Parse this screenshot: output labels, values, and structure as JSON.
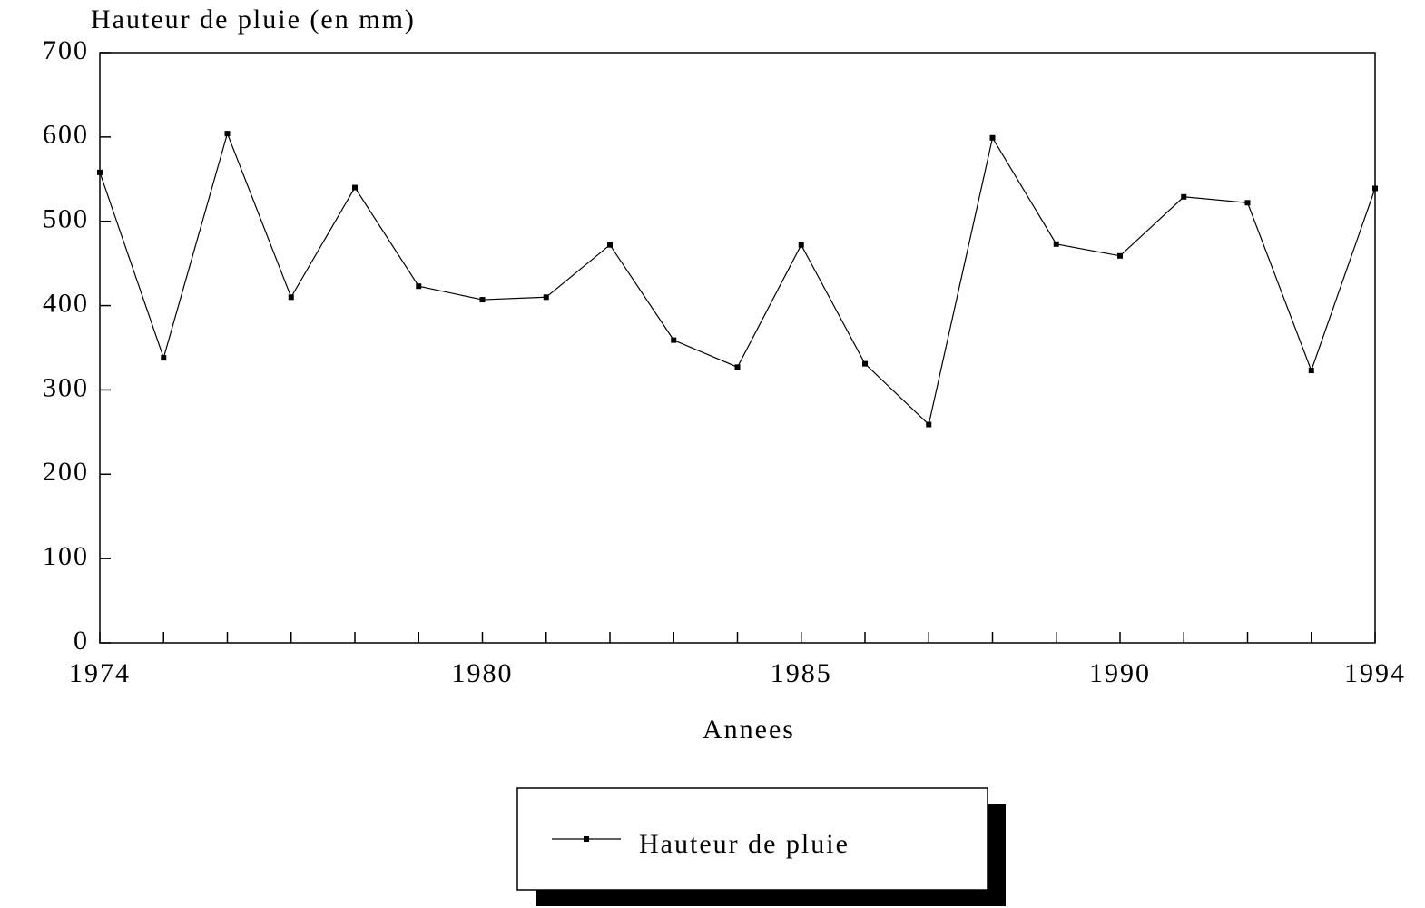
{
  "chart_data": {
    "type": "line",
    "title": "Hauteur de pluie (en mm)",
    "x_label": "Annees",
    "x": [
      1974,
      1975,
      1976,
      1977,
      1978,
      1979,
      1980,
      1981,
      1982,
      1983,
      1984,
      1985,
      1986,
      1987,
      1988,
      1989,
      1990,
      1991,
      1992,
      1993,
      1994
    ],
    "series": [
      {
        "name": "Hauteur de pluie",
        "color": "#000000",
        "values": [
          558,
          338,
          604,
          410,
          540,
          423,
          407,
          410,
          472,
          359,
          327,
          472,
          331,
          259,
          599,
          473,
          459,
          529,
          522,
          323,
          539
        ]
      }
    ],
    "xlim": [
      1974,
      1994
    ],
    "xticks": [
      1974,
      1980,
      1985,
      1990,
      1994
    ],
    "ylim": [
      0,
      700
    ],
    "yticks": [
      0,
      100,
      200,
      300,
      400,
      500,
      600,
      700
    ],
    "legend": "bottom"
  }
}
